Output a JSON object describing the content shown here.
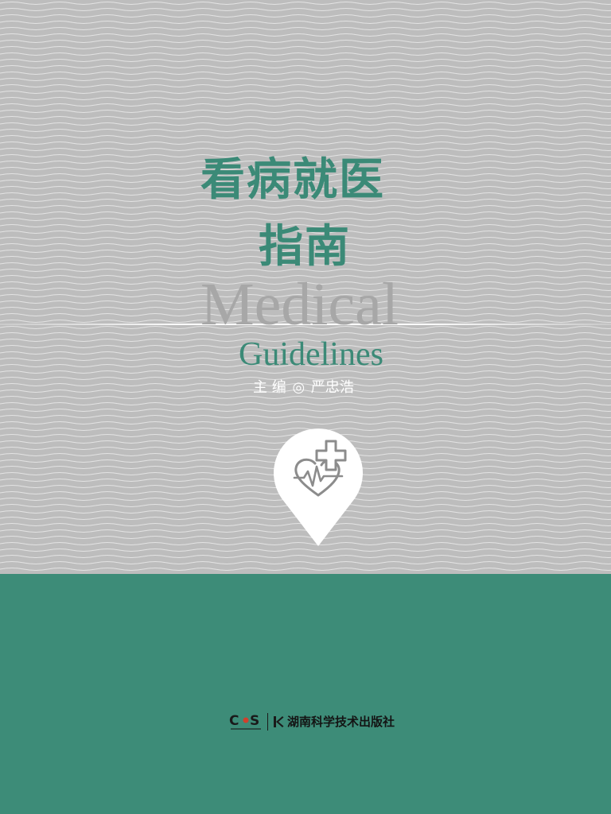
{
  "cover": {
    "title_zh_line1": "看病就医",
    "title_zh_line2": "指南",
    "title_en_line1": "Medical",
    "title_en_line2": "Guidelines",
    "editor_role": "主 编",
    "editor_sep": "◎",
    "editor_name": "严忠浩",
    "publisher_name": "湖南科学技术出版社"
  },
  "colors": {
    "accent_green": "#3d8c78",
    "title_green": "#3b8a77",
    "background_gray": "#bdbdbd",
    "subtitle_gray": "#a7a7a7"
  },
  "icons": {
    "pin": "heart-pulse-location-pin-icon",
    "publisher_logo": "cs-publisher-logo-icon"
  }
}
